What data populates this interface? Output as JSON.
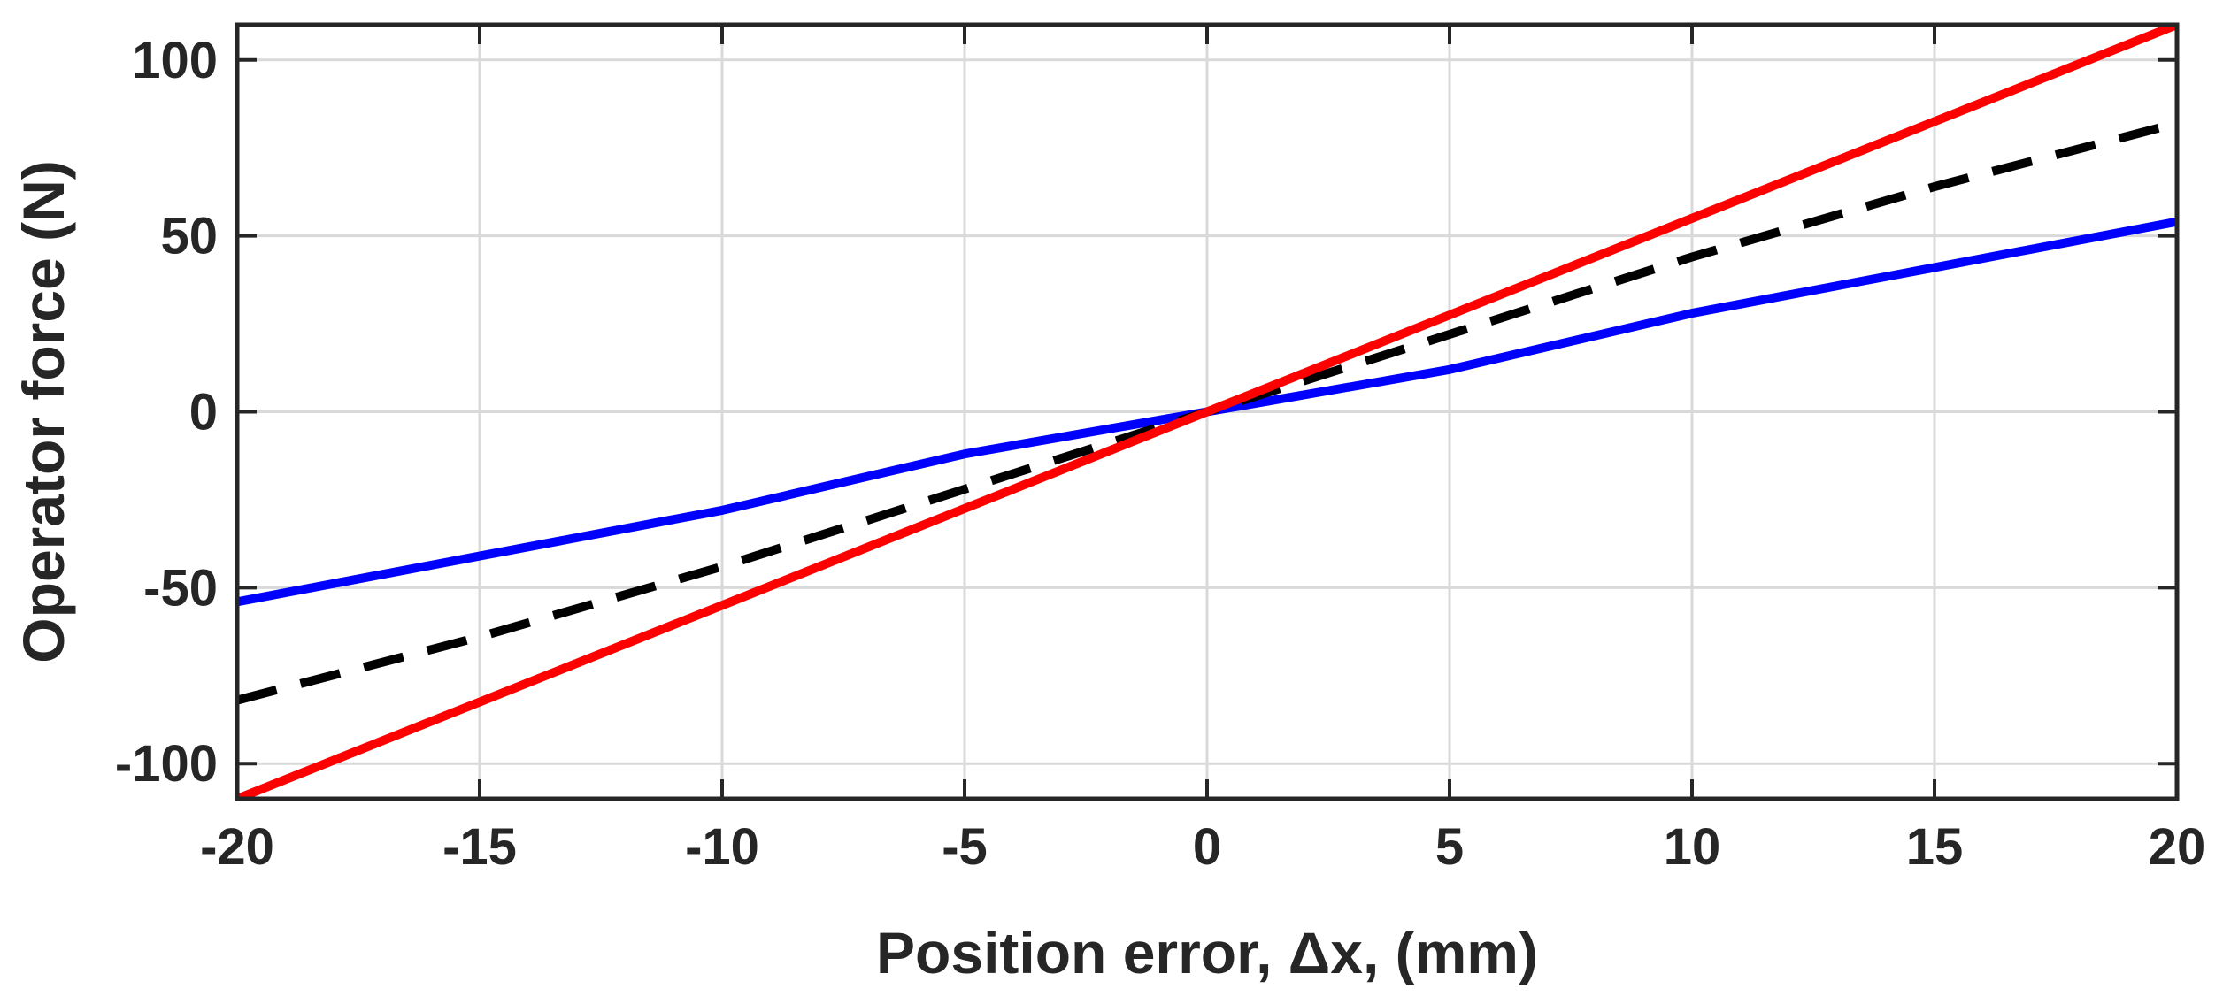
{
  "chart_data": {
    "type": "line",
    "xlabel": "Position error, Δx, (mm)",
    "ylabel": "Operator force (N)",
    "xlim": [
      -20,
      20
    ],
    "ylim": [
      -110,
      110
    ],
    "xticks": [
      "-20",
      "-15",
      "-10",
      "-5",
      "0",
      "5",
      "10",
      "15",
      "20"
    ],
    "yticks": [
      "-100",
      "-50",
      "0",
      "50",
      "100"
    ],
    "grid": true,
    "legend": "none",
    "series": [
      {
        "color": "#ff0000",
        "style": "solid",
        "x": [
          -20,
          -15,
          -10,
          -5,
          0,
          5,
          10,
          15,
          20
        ],
        "y": [
          -110,
          -82.5,
          -55,
          -27.5,
          0,
          27.5,
          55,
          82.5,
          110
        ]
      },
      {
        "color": "#000000",
        "style": "dashed",
        "x": [
          -20,
          -15,
          -10,
          -5,
          0,
          5,
          10,
          15,
          20
        ],
        "y": [
          -82,
          -64,
          -44,
          -22,
          0,
          22,
          44,
          64,
          82
        ]
      },
      {
        "color": "#0000ff",
        "style": "solid",
        "x": [
          -20,
          -15,
          -10,
          -5,
          0,
          5,
          10,
          15,
          20
        ],
        "y": [
          -54,
          -41,
          -28,
          -12,
          0,
          12,
          28,
          41,
          54
        ]
      }
    ]
  }
}
